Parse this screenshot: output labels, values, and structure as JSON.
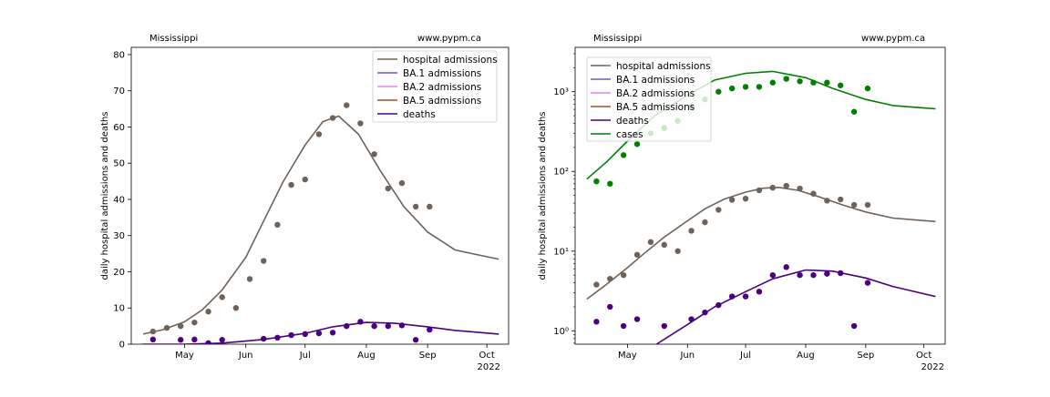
{
  "chart_data": [
    {
      "type": "line",
      "scale": "linear",
      "title_left": "Mississippi",
      "title_right": "www.pypm.ca",
      "ylabel": "daily hospital admissions and deaths",
      "xlabel": "2022",
      "ylim": [
        0,
        82
      ],
      "yticks": [
        0,
        10,
        20,
        30,
        40,
        50,
        60,
        70,
        80
      ],
      "xticks": [
        {
          "date": "2022-05-01",
          "label": "May"
        },
        {
          "date": "2022-06-01",
          "label": "Jun"
        },
        {
          "date": "2022-07-01",
          "label": "Jul"
        },
        {
          "date": "2022-08-01",
          "label": "Aug"
        },
        {
          "date": "2022-09-01",
          "label": "Sep"
        },
        {
          "date": "2022-10-01",
          "label": "Oct"
        }
      ],
      "xlim": [
        "2022-04-04",
        "2022-10-12"
      ],
      "legend_position": "top-right",
      "series": [
        {
          "name": "hospital admissions",
          "color": "#6e6259",
          "x": [
            "2022-04-10",
            "2022-04-20",
            "2022-05-01",
            "2022-05-10",
            "2022-05-20",
            "2022-06-01",
            "2022-06-10",
            "2022-06-20",
            "2022-07-01",
            "2022-07-10",
            "2022-07-18",
            "2022-07-28",
            "2022-08-08",
            "2022-08-20",
            "2022-09-01",
            "2022-09-15",
            "2022-10-07"
          ],
          "y": [
            2.8,
            4,
            6.2,
            9.5,
            15,
            24,
            34,
            45,
            55,
            61.5,
            63,
            58,
            48,
            38,
            31,
            26,
            23.5
          ]
        },
        {
          "name": "BA.1 admissions",
          "color": "#6a5acd",
          "x": [],
          "y": []
        },
        {
          "name": "BA.2 admissions",
          "color": "#ee82ee",
          "x": [],
          "y": []
        },
        {
          "name": "BA.5 admissions",
          "color": "#a0522d",
          "x": [],
          "y": []
        },
        {
          "name": "deaths",
          "color": "#4b0082",
          "x": [
            "2022-04-10",
            "2022-05-01",
            "2022-05-20",
            "2022-06-10",
            "2022-07-01",
            "2022-07-15",
            "2022-08-01",
            "2022-08-15",
            "2022-09-01",
            "2022-09-15",
            "2022-10-07"
          ],
          "y": [
            0,
            0,
            0.3,
            1.3,
            3,
            4.8,
            6,
            5.8,
            4.8,
            3.8,
            2.8
          ]
        }
      ],
      "points": [
        {
          "series": "hospital admissions",
          "x": [
            "2022-04-15",
            "2022-04-22",
            "2022-04-29",
            "2022-05-06",
            "2022-05-13",
            "2022-05-20",
            "2022-05-27",
            "2022-06-03",
            "2022-06-10",
            "2022-06-17",
            "2022-06-24",
            "2022-07-01",
            "2022-07-08",
            "2022-07-15",
            "2022-07-22",
            "2022-07-29",
            "2022-08-05",
            "2022-08-12",
            "2022-08-19",
            "2022-08-26",
            "2022-09-02"
          ],
          "y": [
            3.5,
            4.5,
            5,
            6,
            9,
            13,
            10,
            18,
            23,
            33,
            44,
            45.5,
            58,
            62.5,
            66,
            61,
            52.5,
            43,
            44.5,
            38,
            38
          ]
        },
        {
          "series": "deaths",
          "x": [
            "2022-04-15",
            "2022-04-29",
            "2022-05-06",
            "2022-05-13",
            "2022-05-20",
            "2022-06-10",
            "2022-06-17",
            "2022-06-24",
            "2022-07-01",
            "2022-07-08",
            "2022-07-15",
            "2022-07-22",
            "2022-07-29",
            "2022-08-05",
            "2022-08-12",
            "2022-08-19",
            "2022-08-26",
            "2022-09-02"
          ],
          "y": [
            1.3,
            1.2,
            1.3,
            0.3,
            1.2,
            1.5,
            1.8,
            2.5,
            2.8,
            3,
            3.2,
            5,
            6.2,
            5,
            5,
            5.2,
            1.2,
            4
          ]
        }
      ]
    },
    {
      "type": "line",
      "scale": "log",
      "title_left": "Mississippi",
      "title_right": "www.pypm.ca",
      "ylabel": "daily hospital admissions and deaths",
      "xlabel": "2022",
      "ylim": [
        0.68,
        3600
      ],
      "yticks": [
        {
          "value": 1,
          "label": "10⁰"
        },
        {
          "value": 10,
          "label": "10¹"
        },
        {
          "value": 100,
          "label": "10²"
        },
        {
          "value": 1000,
          "label": "10³"
        }
      ],
      "xticks": [
        {
          "date": "2022-05-01",
          "label": "May"
        },
        {
          "date": "2022-06-01",
          "label": "Jun"
        },
        {
          "date": "2022-07-01",
          "label": "Jul"
        },
        {
          "date": "2022-08-01",
          "label": "Aug"
        },
        {
          "date": "2022-09-01",
          "label": "Sep"
        },
        {
          "date": "2022-10-01",
          "label": "Oct"
        }
      ],
      "xlim": [
        "2022-04-04",
        "2022-10-12"
      ],
      "legend_position": "top-left",
      "series": [
        {
          "name": "hospital admissions",
          "color": "#6e6259",
          "x": [
            "2022-04-10",
            "2022-04-20",
            "2022-05-01",
            "2022-05-10",
            "2022-05-20",
            "2022-06-01",
            "2022-06-10",
            "2022-06-20",
            "2022-07-01",
            "2022-07-10",
            "2022-07-18",
            "2022-07-28",
            "2022-08-08",
            "2022-08-20",
            "2022-09-01",
            "2022-09-15",
            "2022-10-07"
          ],
          "y": [
            2.5,
            3.8,
            6.2,
            9.5,
            15,
            24,
            34,
            45,
            55,
            61.5,
            63,
            58,
            48,
            38,
            31,
            26,
            23.5
          ]
        },
        {
          "name": "BA.1 admissions",
          "color": "#6a5acd",
          "x": [],
          "y": []
        },
        {
          "name": "BA.2 admissions",
          "color": "#ee82ee",
          "x": [],
          "y": []
        },
        {
          "name": "BA.5 admissions",
          "color": "#a0522d",
          "x": [],
          "y": []
        },
        {
          "name": "deaths",
          "color": "#4b0082",
          "x": [
            "2022-05-16",
            "2022-06-01",
            "2022-06-15",
            "2022-07-01",
            "2022-07-15",
            "2022-08-01",
            "2022-08-15",
            "2022-09-01",
            "2022-09-15",
            "2022-10-07"
          ],
          "y": [
            0.68,
            1.2,
            2,
            3.1,
            4.5,
            5.8,
            5.6,
            4.6,
            3.6,
            2.7
          ]
        },
        {
          "name": "cases",
          "color": "#008000",
          "x": [
            "2022-04-10",
            "2022-04-20",
            "2022-05-01",
            "2022-05-15",
            "2022-06-01",
            "2022-06-15",
            "2022-07-01",
            "2022-07-15",
            "2022-08-01",
            "2022-08-15",
            "2022-09-01",
            "2022-09-15",
            "2022-10-07"
          ],
          "y": [
            80,
            130,
            240,
            500,
            900,
            1400,
            1700,
            1800,
            1500,
            1100,
            800,
            670,
            610
          ]
        }
      ],
      "points": [
        {
          "series": "hospital admissions",
          "x": [
            "2022-04-15",
            "2022-04-22",
            "2022-04-29",
            "2022-05-06",
            "2022-05-13",
            "2022-05-20",
            "2022-05-27",
            "2022-06-03",
            "2022-06-10",
            "2022-06-17",
            "2022-06-24",
            "2022-07-01",
            "2022-07-08",
            "2022-07-15",
            "2022-07-22",
            "2022-07-29",
            "2022-08-05",
            "2022-08-12",
            "2022-08-19",
            "2022-08-26",
            "2022-09-02"
          ],
          "y": [
            3.8,
            4.5,
            5,
            9,
            13,
            12,
            10,
            18,
            23,
            33,
            44,
            45.5,
            58,
            62.5,
            66,
            61,
            52.5,
            43,
            44.5,
            38,
            38
          ]
        },
        {
          "series": "deaths",
          "x": [
            "2022-04-15",
            "2022-04-22",
            "2022-04-29",
            "2022-05-06",
            "2022-05-20",
            "2022-06-03",
            "2022-06-10",
            "2022-06-17",
            "2022-06-24",
            "2022-07-01",
            "2022-07-08",
            "2022-07-15",
            "2022-07-22",
            "2022-07-29",
            "2022-08-05",
            "2022-08-12",
            "2022-08-19",
            "2022-08-26",
            "2022-09-02"
          ],
          "y": [
            1.3,
            2,
            1.15,
            1.4,
            1.15,
            1.4,
            1.7,
            2.1,
            2.7,
            2.7,
            3.1,
            5,
            6.3,
            5,
            5,
            5.2,
            5.3,
            1.15,
            4
          ]
        },
        {
          "series": "cases",
          "x": [
            "2022-04-15",
            "2022-04-22",
            "2022-04-29",
            "2022-05-06",
            "2022-05-13",
            "2022-05-20",
            "2022-05-27",
            "2022-06-03",
            "2022-06-10",
            "2022-06-17",
            "2022-06-24",
            "2022-07-01",
            "2022-07-08",
            "2022-07-15",
            "2022-07-22",
            "2022-07-29",
            "2022-08-05",
            "2022-08-12",
            "2022-08-19",
            "2022-08-26",
            "2022-09-02"
          ],
          "y": [
            75,
            70,
            160,
            220,
            300,
            350,
            430,
            650,
            800,
            1000,
            1100,
            1150,
            1150,
            1300,
            1450,
            1350,
            1300,
            1300,
            1200,
            560,
            1100
          ]
        }
      ]
    }
  ]
}
